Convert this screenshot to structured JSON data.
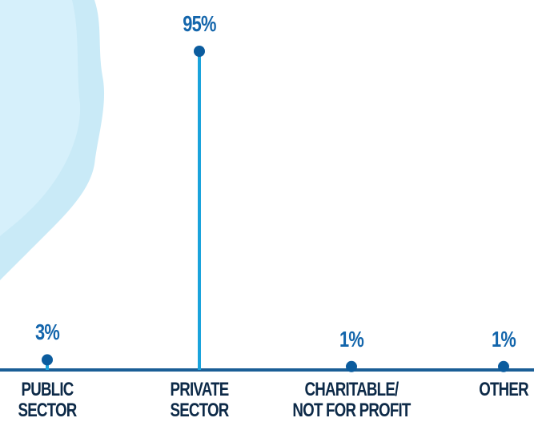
{
  "chart_data": {
    "type": "lollipop",
    "categories": [
      "PUBLIC\nSECTOR",
      "PRIVATE\nSECTOR",
      "CHARITABLE/\nNOT FOR PROFIT",
      "OTHER"
    ],
    "values": [
      3,
      95,
      1,
      1
    ],
    "value_labels": [
      "3%",
      "95%",
      "1%",
      "1%"
    ],
    "color": "#1aa3dc",
    "dot_color": "#0b5c9e"
  }
}
